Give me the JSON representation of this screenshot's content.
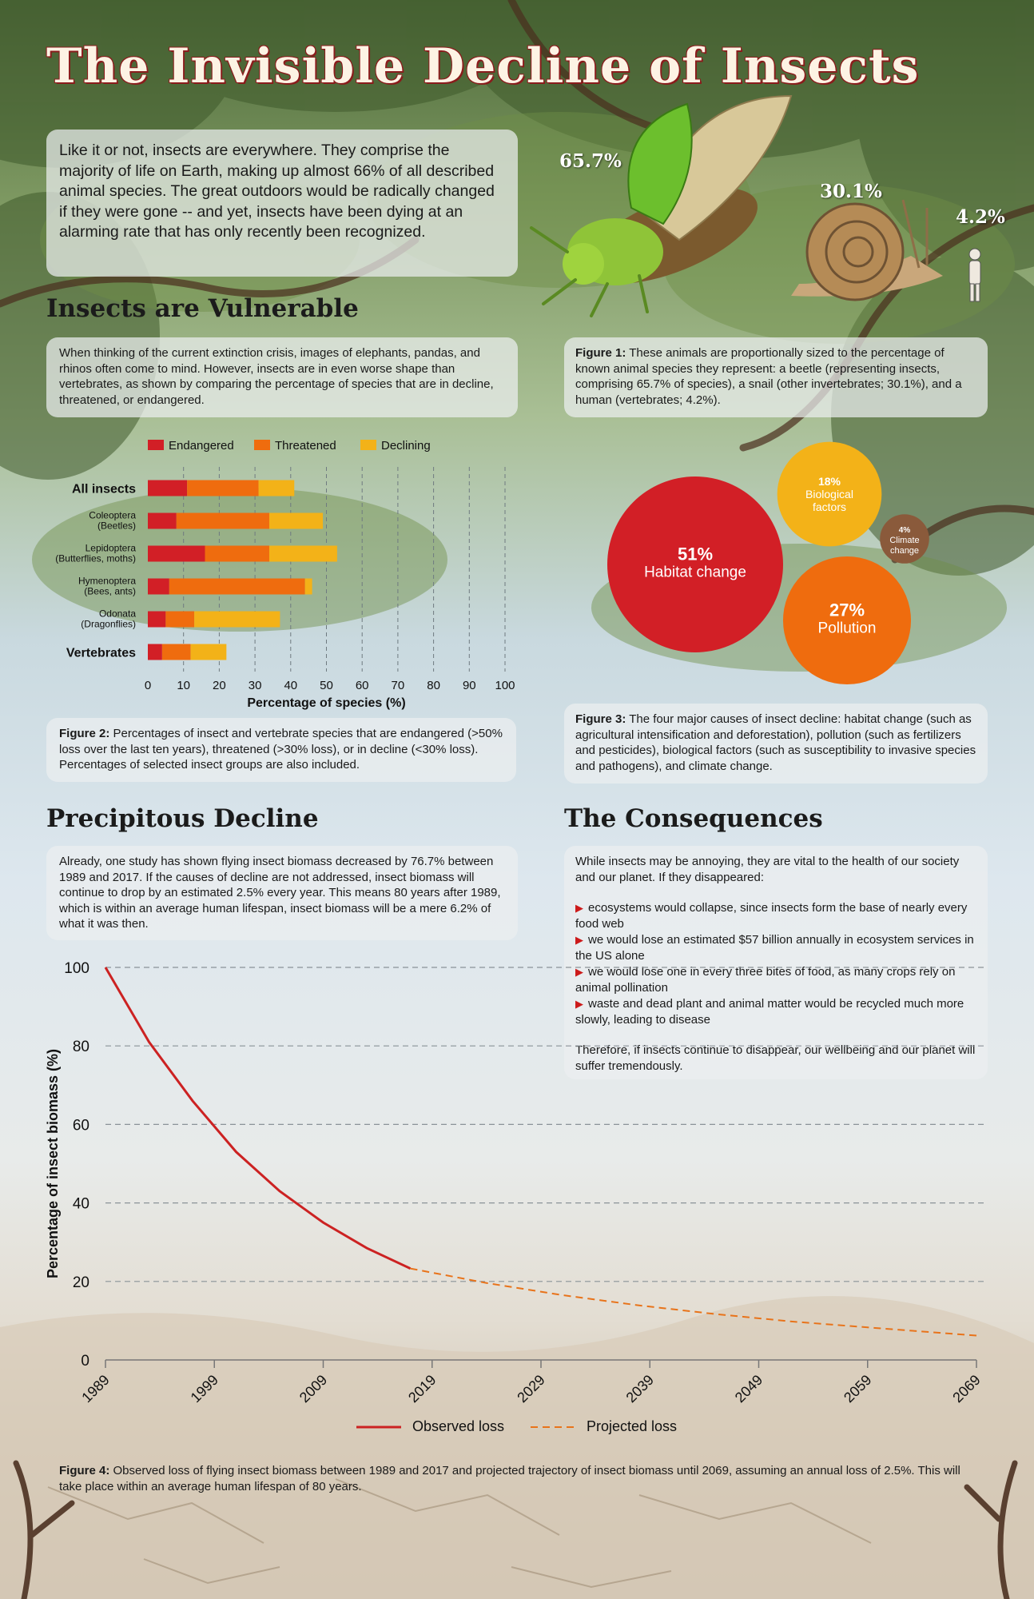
{
  "title": "The Invisible Decline of Insects",
  "intro": "Like it or not, insects are everywhere. They comprise the majority of life on Earth, making up almost 66% of all described animal species. The great outdoors would be radically changed if they were gone -- and yet, insects have been dying at an alarming rate that has only recently been recognized.",
  "sections": {
    "vulnerable": {
      "heading": "Insects are Vulnerable",
      "text": "When thinking of the current extinction crisis, images of elephants, pandas, and rhinos often come to mind. However, insects are in even worse shape than vertebrates, as shown by comparing the percentage of species that are in decline, threatened, or endangered."
    },
    "decline": {
      "heading": "Precipitous Decline",
      "text": "Already, one study has shown flying insect biomass decreased by 76.7% between 1989 and 2017. If the causes of decline are not addressed, insect biomass will continue to drop by an estimated 2.5% every year. This means 80 years after 1989, which is within an average human lifespan, insect biomass will be a mere 6.2% of what it was then."
    },
    "consequences": {
      "heading": "The Consequences",
      "lead": "While insects may be annoying, they are vital to the health of our society and our planet. If they disappeared:",
      "bullets": [
        "ecosystems would collapse, since insects form the base of nearly every food web",
        "we would lose an estimated $57 billion annually in ecosystem services in the US alone",
        "we would lose one in every three bites of food, as many crops rely on animal pollination",
        "waste and dead plant and animal matter would be recycled much more slowly, leading to disease"
      ],
      "closing": "Therefore, if insects continue to disappear, our wellbeing and our planet will suffer tremendously."
    }
  },
  "captions": {
    "fig1": {
      "label": "Figure 1:",
      "text": " These animals are proportionally sized to the percentage of known animal species they represent: a beetle (representing insects, comprising 65.7% of species), a snail (other invertebrates; 30.1%), and a human (vertebrates; 4.2%)."
    },
    "fig2": {
      "label": "Figure 2:",
      "text": " Percentages of insect and vertebrate species that are endangered (>50% loss over the last ten years), threatened (>30% loss), or in decline (<30% loss). Percentages of selected insect groups are also included."
    },
    "fig3": {
      "label": "Figure 3:",
      "text": " The four major causes of insect decline: habitat change (such as agricultural intensification and deforestation), pollution (such as fertilizers and pesticides), biological factors (such as susceptibility to invasive species and pathogens), and climate change."
    },
    "fig4": {
      "label": "Figure 4:",
      "text": " Observed loss of flying insect biomass between 1989 and 2017 and projected trajectory of insect biomass until 2069, assuming an annual loss of 2.5%. This will take place within an average human lifespan of 80 years."
    }
  },
  "colors": {
    "endangered": "#d21f26",
    "threatened": "#ef6c0e",
    "declining": "#f3b218",
    "climate": "#8a5a3b",
    "observed": "#cc2222",
    "projected": "#e8731a"
  },
  "icons": [
    "beetle-illustration",
    "snail-illustration",
    "human-illustration",
    "bullet-arrow-icon"
  ],
  "chart_data": [
    {
      "type": "pictorial-proportion",
      "items": [
        {
          "name": "Insects",
          "value": 65.7,
          "label": "65.7%"
        },
        {
          "name": "Other invertebrates",
          "value": 30.1,
          "label": "30.1%"
        },
        {
          "name": "Vertebrates",
          "value": 4.2,
          "label": "4.2%"
        }
      ]
    },
    {
      "type": "bar",
      "stacked": true,
      "orientation": "horizontal",
      "xlabel": "Percentage of species (%)",
      "xlim": [
        0,
        100
      ],
      "xticks": [
        0,
        10,
        20,
        30,
        40,
        50,
        60,
        70,
        80,
        90,
        100
      ],
      "legend_position": "top",
      "categories": [
        {
          "label": "All insects",
          "sub": "",
          "bold": true
        },
        {
          "label": "Coleoptera",
          "sub": "(Beetles)",
          "bold": false
        },
        {
          "label": "Lepidoptera",
          "sub": "(Butterflies, moths)",
          "bold": false
        },
        {
          "label": "Hymenoptera",
          "sub": "(Bees, ants)",
          "bold": false
        },
        {
          "label": "Odonata",
          "sub": "(Dragonflies)",
          "bold": false
        },
        {
          "label": "Vertebrates",
          "sub": "",
          "bold": true
        }
      ],
      "series": [
        {
          "name": "Endangered",
          "values": [
            11,
            8,
            16,
            6,
            5,
            4
          ]
        },
        {
          "name": "Threatened",
          "values": [
            20,
            26,
            18,
            38,
            8,
            8
          ]
        },
        {
          "name": "Declining",
          "values": [
            10,
            15,
            19,
            2,
            24,
            10
          ]
        }
      ]
    },
    {
      "type": "bubble",
      "items": [
        {
          "name": "Habitat change",
          "value": 51,
          "label": "51%"
        },
        {
          "name": "Biological factors",
          "value": 18,
          "label": "18%"
        },
        {
          "name": "Climate change",
          "value": 4,
          "label": "4%"
        },
        {
          "name": "Pollution",
          "value": 27,
          "label": "27%"
        }
      ]
    },
    {
      "type": "line",
      "ylabel": "Percentage of insect biomass (%)",
      "ylim": [
        0,
        100
      ],
      "yticks": [
        0,
        20,
        40,
        60,
        80,
        100
      ],
      "xlim": [
        1989,
        2069
      ],
      "xticks": [
        1989,
        1999,
        2009,
        2019,
        2029,
        2039,
        2049,
        2059,
        2069
      ],
      "grid": true,
      "legend_position": "bottom",
      "series": [
        {
          "name": "Observed loss",
          "style": "solid",
          "x": [
            1989,
            1993,
            1997,
            2001,
            2005,
            2009,
            2013,
            2017
          ],
          "y": [
            100,
            81,
            66,
            53,
            43,
            35,
            28.5,
            23.3
          ]
        },
        {
          "name": "Projected loss",
          "style": "dashed",
          "x": [
            2017,
            2024,
            2031,
            2038,
            2045,
            2052,
            2059,
            2069
          ],
          "y": [
            23.3,
            19.6,
            16.5,
            13.9,
            11.7,
            9.8,
            8.3,
            6.2
          ]
        }
      ]
    }
  ]
}
